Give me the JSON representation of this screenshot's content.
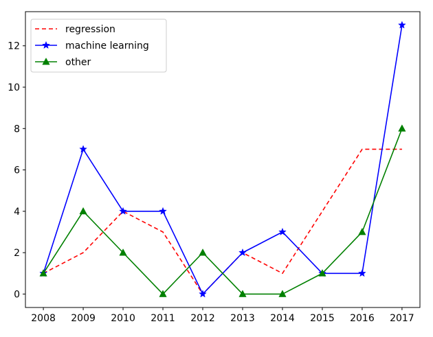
{
  "chart_data": {
    "type": "line",
    "title": "",
    "xlabel": "",
    "ylabel": "",
    "x": [
      2008,
      2009,
      2010,
      2011,
      2012,
      2013,
      2014,
      2015,
      2016,
      2017
    ],
    "x_tick_labels": [
      "2008",
      "2009",
      "2010",
      "2011",
      "2012",
      "2013",
      "2014",
      "2015",
      "2016",
      "2017"
    ],
    "y_ticks": [
      0,
      2,
      4,
      6,
      8,
      10,
      12
    ],
    "y_tick_labels": [
      "0",
      "2",
      "4",
      "6",
      "8",
      "10",
      "12"
    ],
    "xlim": [
      2007.55,
      2017.45
    ],
    "ylim": [
      -0.65,
      13.65
    ],
    "grid": false,
    "legend_position": "top-left",
    "series": [
      {
        "name": "regression",
        "values": [
          1,
          2,
          4,
          3,
          0,
          2,
          1,
          4,
          7,
          7
        ],
        "color": "#ff0000",
        "style": "dashed",
        "marker": "none"
      },
      {
        "name": "machine learning",
        "values": [
          1,
          7,
          4,
          4,
          0,
          2,
          3,
          1,
          1,
          13
        ],
        "color": "#0000ff",
        "style": "solid",
        "marker": "star"
      },
      {
        "name": "other",
        "values": [
          1,
          4,
          2,
          0,
          2,
          0,
          0,
          1,
          3,
          8
        ],
        "color": "#008000",
        "style": "solid",
        "marker": "triangle"
      }
    ]
  }
}
